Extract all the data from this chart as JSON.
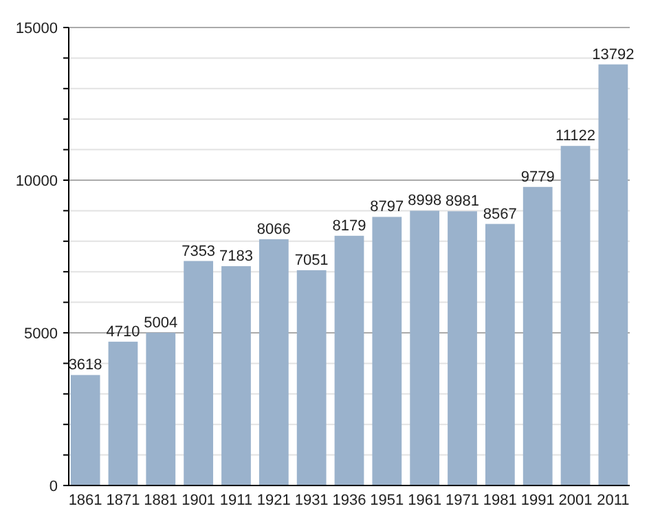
{
  "chart_data": {
    "type": "bar",
    "categories": [
      "1861",
      "1871",
      "1881",
      "1901",
      "1911",
      "1921",
      "1931",
      "1936",
      "1951",
      "1961",
      "1971",
      "1981",
      "1991",
      "2001",
      "2011"
    ],
    "values": [
      3618,
      4710,
      5004,
      7353,
      7183,
      8066,
      7051,
      8179,
      8797,
      8998,
      8981,
      8567,
      9779,
      11122,
      13792
    ],
    "color": "#9ab2cc",
    "ylim": [
      0,
      15000
    ],
    "yticks": [
      0,
      {
        "value": 1000,
        "label": null
      },
      {
        "value": 2000,
        "label": null
      },
      {
        "value": 3000,
        "label": null
      },
      {
        "value": 4000,
        "label": null
      },
      5000,
      {
        "value": 6000,
        "label": null
      },
      {
        "value": 7000,
        "label": null
      },
      {
        "value": 8000,
        "label": null
      },
      {
        "value": 9000,
        "label": null
      },
      10000,
      {
        "value": 11000,
        "label": null
      },
      {
        "value": 12000,
        "label": null
      },
      {
        "value": 13000,
        "label": null
      },
      {
        "value": 14000,
        "label": null
      },
      15000
    ],
    "grid": "y",
    "data_labels": true
  }
}
